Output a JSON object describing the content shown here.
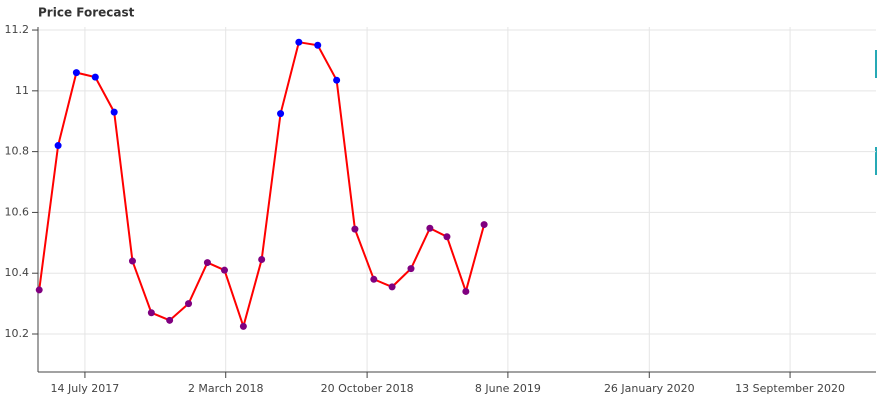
{
  "chart_data": {
    "type": "line",
    "title": "Price Forecast",
    "x": [
      "2017-04-30",
      "2017-05-31",
      "2017-06-30",
      "2017-07-31",
      "2017-08-31",
      "2017-09-30",
      "2017-10-31",
      "2017-11-30",
      "2017-12-31",
      "2018-01-31",
      "2018-02-28",
      "2018-03-31",
      "2018-04-30",
      "2018-05-31",
      "2018-06-30",
      "2018-07-31",
      "2018-08-31",
      "2018-09-30",
      "2018-10-31",
      "2018-11-30",
      "2018-12-31",
      "2019-01-31",
      "2019-02-28",
      "2019-03-31",
      "2019-04-30"
    ],
    "series": [
      {
        "color": "#ff0000",
        "values": [
          10.345,
          10.82,
          11.06,
          11.045,
          10.93,
          10.44,
          10.27,
          10.245,
          10.3,
          10.435,
          10.41,
          10.225,
          10.445,
          10.925,
          11.16,
          11.15,
          11.035,
          10.545,
          10.38,
          10.355,
          10.415,
          10.548,
          10.52,
          10.34,
          10.56
        ],
        "point_colors": [
          "#800080",
          "#0000ff",
          "#0000ff",
          "#0000ff",
          "#0000ff",
          "#800080",
          "#800080",
          "#800080",
          "#800080",
          "#800080",
          "#800080",
          "#800080",
          "#800080",
          "#0000ff",
          "#0000ff",
          "#0000ff",
          "#0000ff",
          "#800080",
          "#800080",
          "#800080",
          "#800080",
          "#800080",
          "#800080",
          "#800080",
          "#800080"
        ]
      }
    ],
    "xlim": [
      "2017-04-28",
      "2021-02-01"
    ],
    "xticks": [
      {
        "value": "2017-07-14",
        "label": "14 July 2017"
      },
      {
        "value": "2018-03-02",
        "label": "2 March 2018"
      },
      {
        "value": "2018-10-20",
        "label": "20 October 2018"
      },
      {
        "value": "2019-06-08",
        "label": "8 June 2019"
      },
      {
        "value": "2020-01-26",
        "label": "26 January 2020"
      },
      {
        "value": "2020-09-13",
        "label": "13 September 2020"
      }
    ],
    "ylim": [
      10.075,
      11.21
    ],
    "yticks": [
      10.2,
      10.4,
      10.6,
      10.8,
      {
        "value": 11,
        "label": "11"
      },
      11.2
    ],
    "grid": true
  }
}
